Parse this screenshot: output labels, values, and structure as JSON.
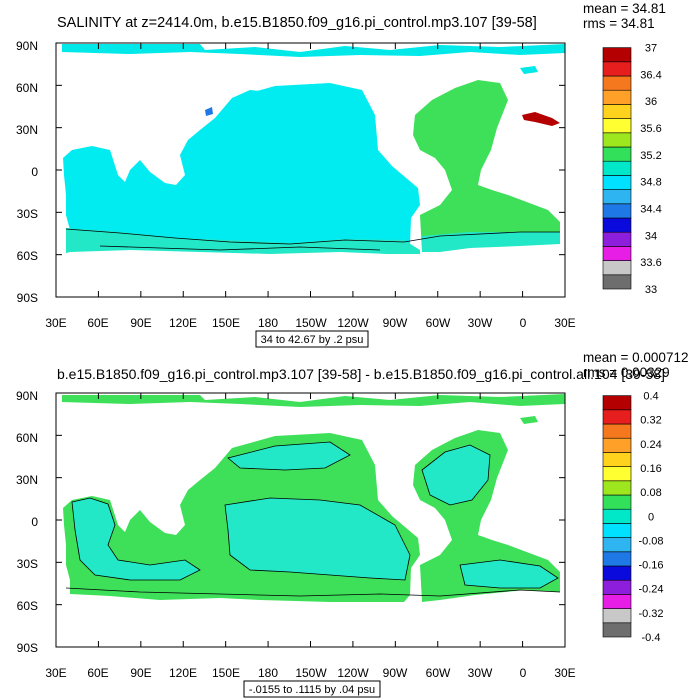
{
  "panels": [
    {
      "id": "top",
      "title": "SALINITY at z=2414.0m, b.e15.B1850.f09_g16.pi_control.mp3.107 [39-58]",
      "stats": {
        "mean": "mean = 34.81",
        "rms": "rms = 34.81"
      },
      "contour_info": "34 to 42.67 by .2 psu",
      "lat_labels": [
        "90N",
        "60N",
        "30N",
        "0",
        "30S",
        "60S",
        "90S"
      ],
      "lon_labels": [
        "30E",
        "60E",
        "90E",
        "120E",
        "150E",
        "180",
        "150W",
        "120W",
        "90W",
        "60W",
        "30W",
        "0",
        "30E"
      ],
      "colorbar": {
        "colors": [
          "#6e6e6e",
          "#c8c8c8",
          "#e61ee6",
          "#8c1edc",
          "#0a0adc",
          "#1e78e6",
          "#2eb4f0",
          "#00e0ff",
          "#00e8c8",
          "#32e05a",
          "#9ee61e",
          "#ffff32",
          "#ffd21e",
          "#ffa028",
          "#f5781e",
          "#e61e1e",
          "#b40000"
        ],
        "labels": [
          "33",
          "33.6",
          "34",
          "34.4",
          "34.8",
          "35.2",
          "35.6",
          "36",
          "36.4",
          "37"
        ]
      },
      "colors": {
        "ocean": "#00ecf0",
        "atlantic": "#3ee05a",
        "southern": "#22e8c8",
        "arctic": "#00e8e8"
      }
    },
    {
      "id": "bottom",
      "title": "b.e15.B1850.f09_g16.pi_control.mp3.107 [39-58] - b.e15.B1850.f09_g16.pi_control.all.104 [39-58]",
      "stats": {
        "mean": "mean = 0.000712",
        "rms": "rms = 0.00329"
      },
      "contour_info": "-.0155 to .1115 by .04 psu",
      "lat_labels": [
        "90N",
        "60N",
        "30N",
        "0",
        "30S",
        "60S",
        "90S"
      ],
      "lon_labels": [
        "30E",
        "60E",
        "90E",
        "120E",
        "150E",
        "180",
        "150W",
        "120W",
        "90W",
        "60W",
        "30W",
        "0",
        "30E"
      ],
      "colorbar": {
        "colors": [
          "#6e6e6e",
          "#c8c8c8",
          "#e61ee6",
          "#8c1edc",
          "#0a0adc",
          "#1e78e6",
          "#2eb4f0",
          "#00e0ff",
          "#00e8c8",
          "#32e05a",
          "#9ee61e",
          "#ffff32",
          "#ffd21e",
          "#ffa028",
          "#f5781e",
          "#e61e1e",
          "#b40000"
        ],
        "labels": [
          "-0.4",
          "-0.32",
          "-0.24",
          "-0.16",
          "-0.08",
          "0",
          "0.08",
          "0.16",
          "0.24",
          "0.32",
          "0.4"
        ]
      },
      "colors": {
        "green": "#3ee05a",
        "teal": "#22e8c8"
      }
    }
  ]
}
